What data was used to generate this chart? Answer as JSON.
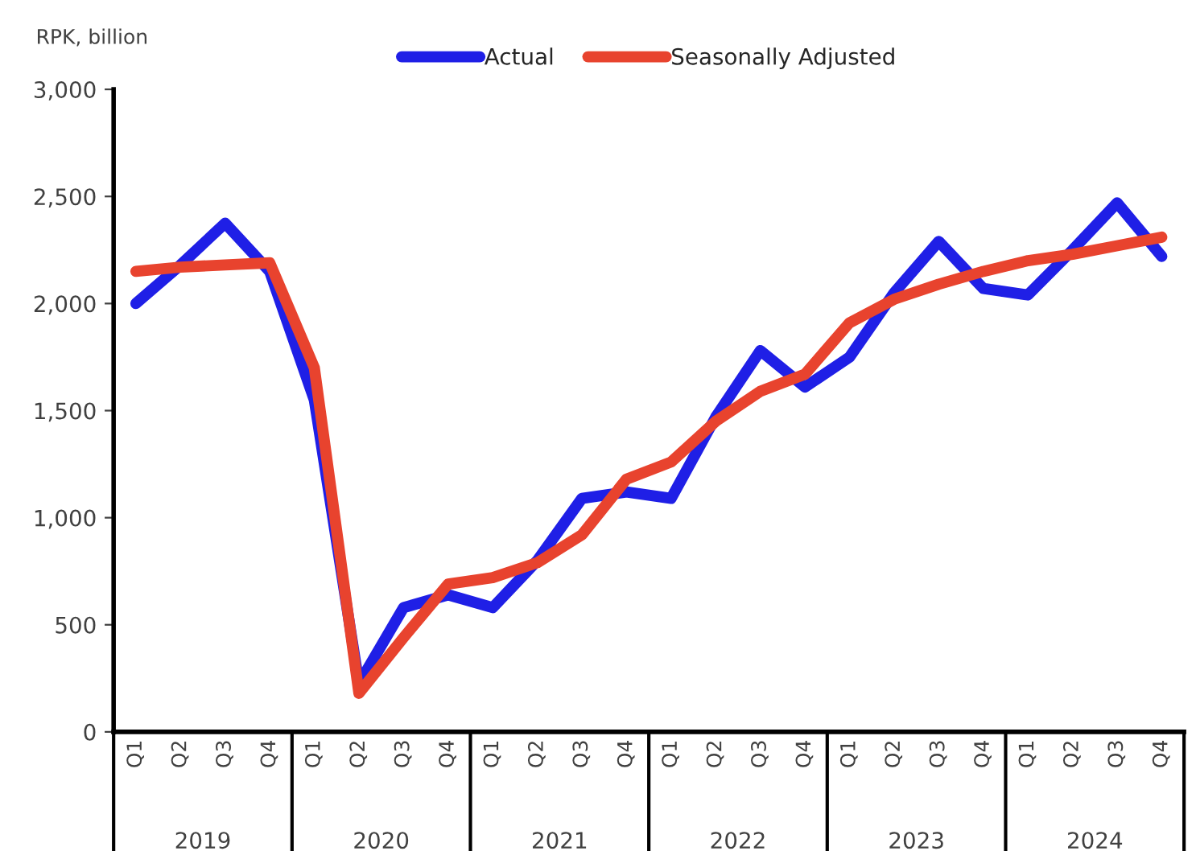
{
  "chart_data": {
    "type": "line",
    "ylabel": "RPK, billion",
    "categories": [
      "Q1",
      "Q2",
      "Q3",
      "Q4",
      "Q1",
      "Q2",
      "Q3",
      "Q4",
      "Q1",
      "Q2",
      "Q3",
      "Q4",
      "Q1",
      "Q2",
      "Q3",
      "Q4",
      "Q1",
      "Q2",
      "Q3",
      "Q4",
      "Q1",
      "Q2",
      "Q3",
      "Q4"
    ],
    "annotations": [
      "2019",
      "2020",
      "2021",
      "2022",
      "2023",
      "2024"
    ],
    "series": [
      {
        "name": "Actual",
        "color": "#1f1fe6",
        "values": [
          2000,
          2180,
          2375,
          2150,
          1550,
          225,
          580,
          640,
          580,
          800,
          1090,
          1120,
          1090,
          1470,
          1780,
          1610,
          1750,
          2050,
          2290,
          2070,
          2040,
          2250,
          2470,
          2220
        ]
      },
      {
        "name": "Seasonally Adjusted",
        "color": "#e8432e",
        "values": [
          2150,
          2170,
          2180,
          2190,
          1700,
          180,
          440,
          690,
          720,
          790,
          920,
          1180,
          1260,
          1450,
          1590,
          1670,
          1910,
          2020,
          2090,
          2150,
          2200,
          2230,
          2270,
          2310
        ]
      }
    ],
    "ylim": [
      0,
      3000
    ],
    "yticks": [
      0,
      {
        "value": 500,
        "label": "500"
      },
      {
        "value": 1000,
        "label": "1,000"
      },
      {
        "value": 1500,
        "label": "1,500"
      },
      {
        "value": 2000,
        "label": "2,000"
      },
      {
        "value": 2500,
        "label": "2,500"
      },
      {
        "value": 3000,
        "label": "3,000"
      }
    ],
    "grid": false,
    "legend": "top",
    "line_style": "solid",
    "marker": "none"
  }
}
